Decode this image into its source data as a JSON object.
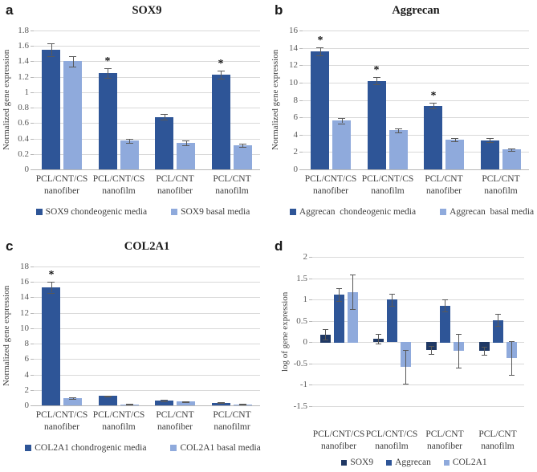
{
  "figure": {
    "background": "#ffffff",
    "glyphs": {
      "star": "*"
    }
  },
  "chart_data": [
    {
      "letter": "a",
      "type": "bar",
      "title": "SOX9",
      "ylabel": "Normalized gene expression",
      "ymin": 0,
      "ymax": 1.8,
      "ystep": 0.2,
      "ytick_labels": [
        "0",
        "0.2",
        "0.4",
        "0.6",
        "0.8",
        "1",
        "1.2",
        "1.4",
        "1.6",
        "1.8"
      ],
      "grid": true,
      "legend_position": "bottom",
      "categories": [
        "PCL/CNT/CS\nnanofiber",
        "PCL/CNT/CS\nnanofilm",
        "PCL/CNT\nnanofiber",
        "PCL/CNT\nnanofilm"
      ],
      "series": [
        {
          "name": "SOX9 chondeogenic media",
          "color": "#2e5597",
          "values": [
            1.55,
            1.25,
            0.68,
            1.23
          ],
          "errors": [
            0.08,
            0.06,
            0.04,
            0.05
          ],
          "stars": [
            false,
            true,
            false,
            true
          ]
        },
        {
          "name": "SOX9 basal media",
          "color": "#8faadc",
          "values": [
            1.4,
            0.37,
            0.34,
            0.31
          ],
          "errors": [
            0.07,
            0.03,
            0.03,
            0.02
          ],
          "stars": [
            false,
            false,
            false,
            false
          ]
        }
      ]
    },
    {
      "letter": "b",
      "type": "bar",
      "title": "Aggrecan",
      "ylabel": "Normalized gene expression",
      "ymin": 0,
      "ymax": 16,
      "ystep": 2,
      "ytick_labels": [
        "0",
        "2",
        "4",
        "6",
        "8",
        "10",
        "12",
        "14",
        "16"
      ],
      "grid": true,
      "legend_position": "bottom",
      "categories": [
        "PCL/CNT/CS\nnanofiber",
        "PCL/CNT/CS\nnanofilm",
        "PCL/CNT\nnanofiber",
        "PCL/CNT\nnanofilm"
      ],
      "series": [
        {
          "name": "Aggrecan  chondeogenic media",
          "color": "#2e5597",
          "values": [
            13.6,
            10.2,
            7.35,
            3.35
          ],
          "errors": [
            0.5,
            0.4,
            0.35,
            0.25
          ],
          "stars": [
            true,
            true,
            true,
            false
          ]
        },
        {
          "name": "Aggrecan  basal media",
          "color": "#8faadc",
          "values": [
            5.6,
            4.5,
            3.45,
            2.3
          ],
          "errors": [
            0.3,
            0.25,
            0.2,
            0.15
          ],
          "stars": [
            false,
            false,
            false,
            false
          ]
        }
      ]
    },
    {
      "letter": "c",
      "type": "bar",
      "title": "COL2A1",
      "ylabel": "Normalized gene expression",
      "ymin": 0,
      "ymax": 18,
      "ystep": 2,
      "ytick_labels": [
        "0",
        "2",
        "4",
        "6",
        "8",
        "10",
        "12",
        "14",
        "16",
        "18"
      ],
      "grid": true,
      "legend_position": "bottom",
      "categories": [
        "PCL/CNT/CS\nnanofiber",
        "PCL/CNT/CS\nnanofilm",
        "PCL/CNT\nnanofiber",
        "PCL/CNT\nnanofilmr"
      ],
      "series": [
        {
          "name": "COL2A1 chondrogenic media",
          "color": "#2e5597",
          "values": [
            15.3,
            1.2,
            0.65,
            0.35
          ],
          "errors": [
            0.7,
            0.1,
            0.08,
            0.06
          ],
          "stars": [
            true,
            false,
            false,
            false
          ]
        },
        {
          "name": "COL2A1 basal media",
          "color": "#8faadc",
          "values": [
            0.95,
            0.15,
            0.5,
            0.15
          ],
          "errors": [
            0.1,
            0.04,
            0.07,
            0.04
          ],
          "stars": [
            false,
            false,
            false,
            false
          ]
        }
      ]
    },
    {
      "letter": "d",
      "type": "bar",
      "title": "",
      "ylabel": "log of gene expression",
      "ymin": -1.5,
      "ymax": 2,
      "ystep": 0.5,
      "ytick_labels": [
        "-1.5",
        "-1",
        "-0.5",
        "0",
        "0.5",
        "1",
        "1.5",
        "2"
      ],
      "grid": true,
      "legend_position": "bottom",
      "categories": [
        "PCL/CNT/CS\nnanofiber",
        "PCL/CNT/CS\nnanofilm",
        "PCL/CNT\nnanofiber",
        "PCL/CNT\nnanofilm"
      ],
      "series": [
        {
          "name": "SOX9",
          "color": "#1f3864",
          "values": [
            0.18,
            0.08,
            -0.18,
            -0.2
          ],
          "errors": [
            0.12,
            0.12,
            0.09,
            0.1
          ],
          "stars": [
            false,
            false,
            false,
            false
          ]
        },
        {
          "name": "Aggrecan",
          "color": "#2e5597",
          "values": [
            1.12,
            1.0,
            0.86,
            0.52
          ],
          "errors": [
            0.15,
            0.14,
            0.14,
            0.14
          ],
          "stars": [
            false,
            false,
            false,
            false
          ]
        },
        {
          "name": "COL2A1",
          "color": "#8faadc",
          "values": [
            1.18,
            -0.58,
            -0.2,
            -0.37
          ],
          "errors": [
            0.4,
            0.4,
            0.4,
            0.4
          ],
          "stars": [
            false,
            false,
            false,
            false
          ]
        }
      ]
    }
  ]
}
